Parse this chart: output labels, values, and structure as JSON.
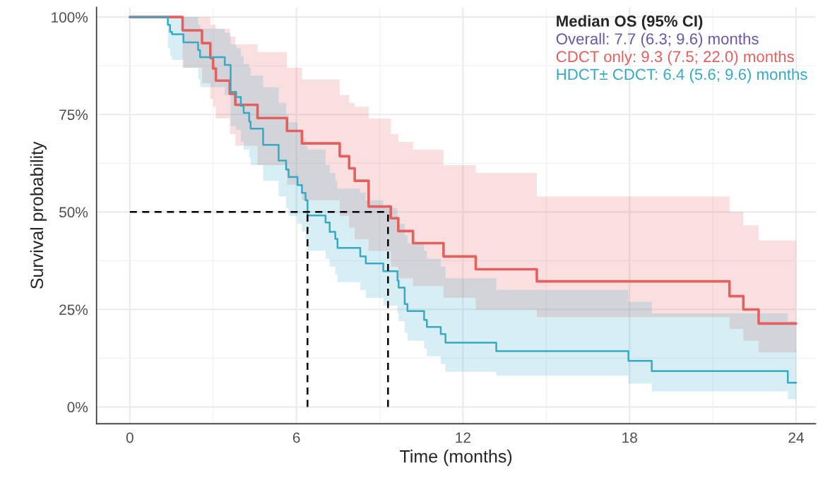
{
  "chart_data": {
    "type": "step",
    "xlabel": "Time (months)",
    "ylabel": "Survival probability",
    "legend_title": "Median OS (95% CI)",
    "annotations": [
      "Overall: 7.7 (6.3; 9.6) months"
    ],
    "series": [
      {
        "name": "CDCT only: 9.3 (7.5; 22.0) months",
        "color": "#e3605f",
        "x": [
          0,
          1.9,
          2.6,
          2.9,
          3.0,
          3.1,
          3.6,
          3.8,
          4.6,
          5.66,
          6.2,
          7.56,
          7.9,
          8.1,
          8.6,
          9.4,
          9.67,
          10.2,
          11.3,
          12.46,
          14.66,
          21.6,
          22.1,
          22.65,
          24
        ],
        "values": [
          100,
          96.6,
          93.3,
          89.5,
          86.8,
          83.7,
          80.3,
          77.5,
          74.1,
          70.8,
          67.6,
          64.3,
          61.2,
          58,
          51.4,
          48.4,
          45.1,
          42,
          38.6,
          35.3,
          32.2,
          28.4,
          25,
          21.4,
          21.4
        ],
        "upper": [
          100,
          100,
          100,
          98,
          98,
          97,
          95,
          93,
          91,
          87,
          84,
          80,
          78,
          77,
          74,
          70,
          68,
          66,
          62,
          60,
          54,
          50,
          46.6,
          42.7,
          42.7
        ],
        "lower": [
          100,
          87,
          83,
          79,
          77,
          74,
          70,
          67,
          62,
          57,
          53,
          49,
          46,
          43,
          40,
          36,
          33,
          31,
          28,
          25,
          23,
          20,
          17,
          14,
          11
        ]
      },
      {
        "name": "HDCT± CDCT: 6.4 (5.6; 9.6) months",
        "color": "#35a9c6",
        "x": [
          0,
          1.37,
          1.45,
          1.52,
          1.93,
          2.46,
          2.53,
          3.42,
          3.63,
          3.83,
          4.0,
          4.1,
          4.3,
          4.35,
          4.8,
          5.36,
          5.63,
          5.72,
          6.04,
          6.2,
          6.33,
          6.4,
          7.05,
          7.2,
          7.4,
          7.48,
          8.3,
          8.5,
          9.13,
          9.64,
          9.68,
          9.9,
          10.0,
          10.6,
          10.7,
          11.2,
          11.37,
          13.2,
          17.96,
          18.8,
          23.7,
          24
        ],
        "values": [
          100,
          98,
          96.2,
          95.6,
          93.5,
          91.5,
          89.7,
          87.7,
          80.8,
          79.5,
          77.2,
          75.4,
          73.2,
          71.4,
          67.2,
          63.2,
          60.9,
          59,
          56.9,
          54.9,
          53,
          49.1,
          47.3,
          44.9,
          43.1,
          40.8,
          38.6,
          36.8,
          34.8,
          32.4,
          30.6,
          26.4,
          24.6,
          22.3,
          20.5,
          18.7,
          16.5,
          14.3,
          11.8,
          9.2,
          6.2,
          6.2
        ],
        "upper": [
          100,
          100,
          100,
          100,
          100,
          98,
          97,
          96,
          93,
          92,
          90,
          88,
          87,
          85,
          82,
          78,
          75,
          73,
          71,
          69,
          67,
          66,
          62,
          60,
          58,
          56,
          55,
          53,
          51,
          49,
          47,
          44,
          42,
          40,
          38,
          36,
          33,
          30,
          27,
          24,
          22,
          22
        ],
        "lower": [
          100,
          92,
          90,
          89,
          87,
          84,
          82,
          80,
          72,
          71,
          68,
          66,
          64,
          62,
          58,
          54,
          51,
          49,
          47,
          45,
          43,
          40,
          38,
          36,
          34,
          32,
          30,
          28,
          26,
          24,
          22,
          19,
          17,
          15,
          13,
          11,
          9,
          8,
          6,
          4,
          2,
          2
        ]
      }
    ],
    "ref_lines": [
      {
        "axis": "y",
        "value": 50,
        "line_style": "dashed",
        "color": "#000000"
      },
      {
        "axis": "x",
        "value": 6.4,
        "line_style": "dashed",
        "color": "#000000"
      },
      {
        "axis": "x",
        "value": 9.3,
        "line_style": "dashed",
        "color": "#000000"
      }
    ],
    "xlim": [
      -1.2,
      24.7
    ],
    "ylim": [
      -4.3,
      102.5
    ],
    "xticks": [
      0,
      6,
      12,
      18,
      24
    ],
    "yticks": [
      {
        "value": 0,
        "label": "0%"
      },
      {
        "value": 25,
        "label": "25%"
      },
      {
        "value": 50,
        "label": "50%"
      },
      {
        "value": 75,
        "label": "75%"
      },
      {
        "value": 100,
        "label": "100%"
      }
    ],
    "grid": true,
    "legend": "top right",
    "line_style": "solid",
    "marker": "none"
  }
}
